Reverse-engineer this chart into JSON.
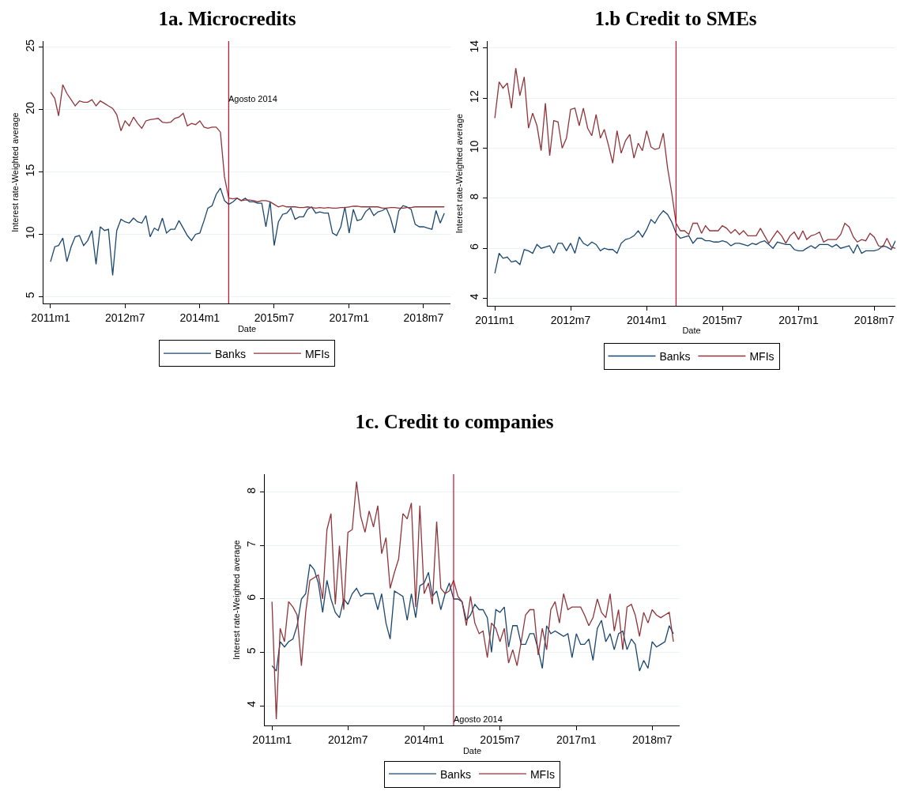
{
  "chart_data": [
    {
      "type": "line",
      "title": "1a. Microcredits",
      "xlabel": "Date",
      "ylabel": "Interest rate-Weighted average",
      "legend": "bottom",
      "grid": "y",
      "marker": "none",
      "line_style": "solid",
      "x": [
        "2011-01",
        "2011-02",
        "2011-03",
        "2011-04",
        "2011-05",
        "2011-06",
        "2011-07",
        "2011-08",
        "2011-09",
        "2011-10",
        "2011-11",
        "2011-12",
        "2012-01",
        "2012-02",
        "2012-03",
        "2012-04",
        "2012-05",
        "2012-06",
        "2012-07",
        "2012-08",
        "2012-09",
        "2012-10",
        "2012-11",
        "2012-12",
        "2013-01",
        "2013-02",
        "2013-03",
        "2013-04",
        "2013-05",
        "2013-06",
        "2013-07",
        "2013-08",
        "2013-09",
        "2013-10",
        "2013-11",
        "2013-12",
        "2014-01",
        "2014-02",
        "2014-03",
        "2014-04",
        "2014-05",
        "2014-06",
        "2014-07",
        "2014-08",
        "2014-09",
        "2014-10",
        "2014-11",
        "2014-12",
        "2015-01",
        "2015-02",
        "2015-03",
        "2015-04",
        "2015-05",
        "2015-06",
        "2015-07",
        "2015-08",
        "2015-09",
        "2015-10",
        "2015-11",
        "2015-12",
        "2016-01",
        "2016-02",
        "2016-03",
        "2016-04",
        "2016-05",
        "2016-06",
        "2016-07",
        "2016-08",
        "2016-09",
        "2016-10",
        "2016-11",
        "2016-12",
        "2017-01",
        "2017-02",
        "2017-03",
        "2017-04",
        "2017-05",
        "2017-06",
        "2017-07",
        "2017-08",
        "2017-09",
        "2017-10",
        "2017-11",
        "2017-12",
        "2018-01",
        "2018-02",
        "2018-03",
        "2018-04",
        "2018-05",
        "2018-06",
        "2018-07",
        "2018-08",
        "2018-09",
        "2018-10",
        "2018-11",
        "2018-12"
      ],
      "xlim": [
        "2010-11-10",
        "2019-01-15"
      ],
      "xticks": [
        {
          "value": "2011-01",
          "label": "2011m1"
        },
        {
          "value": "2012-07",
          "label": "2012m7"
        },
        {
          "value": "2014-01",
          "label": "2014m1"
        },
        {
          "value": "2015-07",
          "label": "2015m7"
        },
        {
          "value": "2017-01",
          "label": "2017m1"
        },
        {
          "value": "2018-07",
          "label": "2018m7"
        }
      ],
      "ylim": [
        4.45,
        25.5
      ],
      "yticks": [
        5,
        10,
        15,
        20,
        25
      ],
      "ref_lines": [
        {
          "axis": "x",
          "value": "2014-08",
          "label": "Agosto 2014",
          "color": "#c8102e"
        }
      ],
      "series": [
        {
          "name": "Banks",
          "color": "#1a476f",
          "values": [
            7.8,
            9.0,
            9.1,
            9.7,
            7.8,
            9.0,
            9.8,
            9.9,
            9.1,
            9.5,
            10.3,
            7.6,
            10.6,
            10.3,
            10.4,
            6.7,
            10.3,
            11.2,
            11.0,
            10.9,
            11.3,
            11.0,
            10.9,
            11.5,
            9.8,
            10.5,
            10.3,
            11.3,
            10.1,
            10.4,
            10.4,
            11.1,
            10.5,
            9.9,
            9.5,
            10.0,
            10.1,
            11.1,
            12.1,
            12.3,
            13.2,
            13.7,
            12.7,
            12.4,
            12.6,
            12.9,
            12.7,
            12.9,
            12.6,
            12.6,
            12.5,
            12.5,
            10.6,
            12.6,
            9.1,
            11.0,
            11.6,
            11.7,
            12.1,
            11.2,
            11.4,
            11.4,
            12.0,
            12.2,
            11.7,
            11.8,
            11.7,
            11.7,
            10.1,
            9.9,
            10.6,
            12.2,
            10.1,
            12.0,
            11.1,
            11.2,
            11.8,
            12.1,
            11.5,
            11.8,
            11.9,
            12.1,
            11.3,
            10.1,
            11.9,
            12.3,
            12.2,
            12.0,
            10.8,
            10.6,
            10.6,
            10.5,
            10.4,
            11.9,
            10.9,
            11.7
          ]
        },
        {
          "name": "MFIs",
          "color": "#90353b",
          "values": [
            21.4,
            20.9,
            19.5,
            22.0,
            21.3,
            20.8,
            20.3,
            20.7,
            20.6,
            20.6,
            20.8,
            20.3,
            20.7,
            20.5,
            20.3,
            20.1,
            19.6,
            18.3,
            19.1,
            18.7,
            19.4,
            18.9,
            18.5,
            19.1,
            19.2,
            19.25,
            19.3,
            19.0,
            18.95,
            19.0,
            19.3,
            19.4,
            19.7,
            18.7,
            18.9,
            18.8,
            19.1,
            18.6,
            18.5,
            18.6,
            18.6,
            18.2,
            14.6,
            12.9,
            12.85,
            12.9,
            12.7,
            12.75,
            12.75,
            12.7,
            12.6,
            12.7,
            12.7,
            12.6,
            12.4,
            12.2,
            12.3,
            12.2,
            12.2,
            12.2,
            12.15,
            12.15,
            12.2,
            12.15,
            12.1,
            12.15,
            12.1,
            12.15,
            12.1,
            12.1,
            12.15,
            12.15,
            12.2,
            12.25,
            12.25,
            12.2,
            12.2,
            12.2,
            12.2,
            12.2,
            12.1,
            12.1,
            12.15,
            12.15,
            12.1,
            12.1,
            12.15,
            12.15,
            12.2,
            12.2,
            12.2,
            12.2,
            12.2,
            12.2,
            12.2,
            12.2
          ]
        }
      ]
    },
    {
      "type": "line",
      "title": "1.b Credit to SMEs",
      "xlabel": "Date",
      "ylabel": "Interest rate-Weighted average",
      "legend": "bottom",
      "grid": "y",
      "marker": "none",
      "line_style": "solid",
      "x": [
        "2011-01",
        "2011-02",
        "2011-03",
        "2011-04",
        "2011-05",
        "2011-06",
        "2011-07",
        "2011-08",
        "2011-09",
        "2011-10",
        "2011-11",
        "2011-12",
        "2012-01",
        "2012-02",
        "2012-03",
        "2012-04",
        "2012-05",
        "2012-06",
        "2012-07",
        "2012-08",
        "2012-09",
        "2012-10",
        "2012-11",
        "2012-12",
        "2013-01",
        "2013-02",
        "2013-03",
        "2013-04",
        "2013-05",
        "2013-06",
        "2013-07",
        "2013-08",
        "2013-09",
        "2013-10",
        "2013-11",
        "2013-12",
        "2014-01",
        "2014-02",
        "2014-03",
        "2014-04",
        "2014-05",
        "2014-06",
        "2014-07",
        "2014-08",
        "2014-09",
        "2014-10",
        "2014-11",
        "2014-12",
        "2015-01",
        "2015-02",
        "2015-03",
        "2015-04",
        "2015-05",
        "2015-06",
        "2015-07",
        "2015-08",
        "2015-09",
        "2015-10",
        "2015-11",
        "2015-12",
        "2016-01",
        "2016-02",
        "2016-03",
        "2016-04",
        "2016-05",
        "2016-06",
        "2016-07",
        "2016-08",
        "2016-09",
        "2016-10",
        "2016-11",
        "2016-12",
        "2017-01",
        "2017-02",
        "2017-03",
        "2017-04",
        "2017-05",
        "2017-06",
        "2017-07",
        "2017-08",
        "2017-09",
        "2017-10",
        "2017-11",
        "2017-12",
        "2018-01",
        "2018-02",
        "2018-03",
        "2018-04",
        "2018-05",
        "2018-06",
        "2018-07",
        "2018-08",
        "2018-09",
        "2018-10",
        "2018-11",
        "2018-12"
      ],
      "xlim": [
        "2010-11-10",
        "2018-12-01"
      ],
      "xticks": [
        {
          "value": "2011-01",
          "label": "2011m1"
        },
        {
          "value": "2012-07",
          "label": "2012m7"
        },
        {
          "value": "2014-01",
          "label": "2014m1"
        },
        {
          "value": "2015-07",
          "label": "2015m7"
        },
        {
          "value": "2017-01",
          "label": "2017m1"
        },
        {
          "value": "2018-07",
          "label": "2018m7"
        }
      ],
      "ylim": [
        3.7,
        14.28
      ],
      "yticks": [
        4,
        6,
        8,
        10,
        12,
        14
      ],
      "ref_lines": [
        {
          "axis": "x",
          "value": "2014-08",
          "color": "#c8102e"
        }
      ],
      "series": [
        {
          "name": "Banks",
          "color": "#1a476f",
          "values": [
            5.0,
            5.8,
            5.6,
            5.65,
            5.45,
            5.5,
            5.35,
            5.95,
            5.9,
            5.8,
            6.15,
            6.0,
            6.05,
            6.1,
            5.8,
            6.2,
            6.2,
            5.9,
            6.2,
            5.8,
            6.45,
            6.2,
            6.1,
            6.25,
            6.15,
            5.9,
            6.0,
            5.95,
            5.95,
            5.8,
            6.2,
            6.35,
            6.4,
            6.5,
            6.7,
            6.45,
            6.75,
            7.15,
            7.0,
            7.3,
            7.5,
            7.35,
            7.05,
            6.6,
            6.4,
            6.45,
            6.5,
            6.2,
            6.4,
            6.4,
            6.3,
            6.3,
            6.25,
            6.25,
            6.3,
            6.25,
            6.1,
            6.2,
            6.2,
            6.15,
            6.1,
            6.2,
            6.15,
            6.25,
            6.3,
            6.15,
            6.0,
            6.25,
            6.2,
            6.15,
            6.15,
            5.95,
            5.9,
            5.9,
            6.0,
            6.1,
            6.0,
            6.15,
            6.15,
            6.15,
            6.05,
            6.15,
            6.0,
            6.05,
            6.1,
            5.8,
            6.15,
            5.8,
            5.9,
            5.9,
            5.9,
            5.95,
            6.1,
            6.05,
            5.95,
            6.3
          ]
        },
        {
          "name": "MFIs",
          "color": "#90353b",
          "values": [
            11.2,
            12.65,
            12.4,
            12.6,
            11.6,
            13.2,
            12.1,
            12.85,
            10.8,
            11.4,
            10.9,
            9.9,
            11.8,
            9.7,
            11.1,
            11.05,
            10.0,
            10.4,
            11.55,
            11.6,
            10.9,
            11.6,
            10.8,
            10.5,
            11.35,
            10.4,
            10.75,
            10.1,
            9.4,
            10.7,
            9.8,
            10.3,
            10.55,
            9.6,
            10.2,
            9.9,
            10.7,
            10.05,
            9.95,
            10.0,
            10.6,
            9.2,
            8.2,
            7.0,
            6.7,
            6.7,
            6.55,
            7.0,
            7.0,
            6.6,
            6.9,
            6.7,
            6.7,
            6.7,
            6.9,
            6.8,
            6.6,
            6.75,
            6.55,
            6.7,
            6.5,
            6.5,
            6.5,
            6.8,
            6.5,
            6.2,
            6.45,
            6.7,
            6.5,
            6.2,
            6.5,
            6.65,
            6.35,
            6.7,
            6.35,
            6.5,
            6.55,
            6.65,
            6.25,
            6.35,
            6.35,
            6.35,
            6.55,
            7.0,
            6.85,
            6.45,
            6.25,
            6.35,
            6.3,
            6.6,
            6.45,
            6.1,
            6.05,
            6.4,
            6.05,
            6.0
          ]
        }
      ]
    },
    {
      "type": "line",
      "title": "1c. Credit to companies",
      "xlabel": "Date",
      "ylabel": "Interest rate-Weighted average",
      "legend": "bottom",
      "grid": "y",
      "marker": "none",
      "line_style": "solid",
      "x": [
        "2011-01",
        "2011-02",
        "2011-03",
        "2011-04",
        "2011-05",
        "2011-06",
        "2011-07",
        "2011-08",
        "2011-09",
        "2011-10",
        "2011-11",
        "2011-12",
        "2012-01",
        "2012-02",
        "2012-03",
        "2012-04",
        "2012-05",
        "2012-06",
        "2012-07",
        "2012-08",
        "2012-09",
        "2012-10",
        "2012-11",
        "2012-12",
        "2013-01",
        "2013-02",
        "2013-03",
        "2013-04",
        "2013-05",
        "2013-06",
        "2013-07",
        "2013-08",
        "2013-09",
        "2013-10",
        "2013-11",
        "2013-12",
        "2014-01",
        "2014-02",
        "2014-03",
        "2014-04",
        "2014-05",
        "2014-06",
        "2014-07",
        "2014-08",
        "2014-09",
        "2014-10",
        "2014-11",
        "2014-12",
        "2015-01",
        "2015-02",
        "2015-03",
        "2015-04",
        "2015-05",
        "2015-06",
        "2015-07",
        "2015-08",
        "2015-09",
        "2015-10",
        "2015-11",
        "2015-12",
        "2016-01",
        "2016-02",
        "2016-03",
        "2016-04",
        "2016-05",
        "2016-06",
        "2016-07",
        "2016-08",
        "2016-09",
        "2016-10",
        "2016-11",
        "2016-12",
        "2017-01",
        "2017-02",
        "2017-03",
        "2017-04",
        "2017-05",
        "2017-06",
        "2017-07",
        "2017-08",
        "2017-09",
        "2017-10",
        "2017-11",
        "2017-12",
        "2018-01",
        "2018-02",
        "2018-03",
        "2018-04",
        "2018-05",
        "2018-06",
        "2018-07",
        "2018-08",
        "2018-09",
        "2018-10",
        "2018-11",
        "2018-12"
      ],
      "xlim": [
        "2010-11-10",
        "2019-01-15"
      ],
      "xticks": [
        {
          "value": "2011-01",
          "label": "2011m1"
        },
        {
          "value": "2012-07",
          "label": "2012m7"
        },
        {
          "value": "2014-01",
          "label": "2014m1"
        },
        {
          "value": "2015-07",
          "label": "2015m7"
        },
        {
          "value": "2017-01",
          "label": "2017m1"
        },
        {
          "value": "2018-07",
          "label": "2018m7"
        }
      ],
      "ylim": [
        3.63,
        8.34
      ],
      "yticks": [
        4,
        5,
        6,
        7,
        8
      ],
      "ref_lines": [
        {
          "axis": "x",
          "value": "2014-08",
          "label": "Agosto 2014",
          "color": "#c8102e"
        }
      ],
      "series": [
        {
          "name": "Banks",
          "color": "#1a476f",
          "values": [
            4.75,
            4.65,
            5.2,
            5.1,
            5.2,
            5.25,
            5.5,
            6.0,
            6.1,
            6.65,
            6.55,
            6.3,
            5.75,
            6.35,
            6.0,
            5.75,
            5.65,
            6.0,
            5.9,
            6.1,
            6.2,
            6.05,
            6.1,
            6.1,
            6.1,
            5.8,
            6.1,
            5.55,
            5.25,
            6.15,
            6.1,
            6.05,
            5.6,
            6.1,
            5.65,
            6.25,
            6.3,
            6.5,
            6.05,
            6.15,
            5.8,
            6.1,
            6.3,
            6.0,
            6.0,
            5.95,
            5.6,
            5.7,
            5.9,
            5.8,
            5.8,
            5.65,
            5.0,
            5.8,
            5.75,
            5.85,
            5.1,
            5.5,
            5.5,
            5.15,
            5.15,
            5.35,
            5.35,
            5.05,
            4.7,
            5.5,
            5.35,
            5.4,
            5.35,
            5.3,
            5.35,
            4.9,
            5.35,
            5.15,
            5.15,
            5.25,
            4.85,
            5.45,
            5.6,
            5.2,
            5.35,
            5.05,
            5.35,
            5.4,
            5.05,
            5.25,
            5.15,
            4.65,
            4.85,
            4.7,
            5.2,
            5.1,
            5.15,
            5.2,
            5.5,
            5.35
          ]
        },
        {
          "name": "MFIs",
          "color": "#90353b",
          "values": [
            5.95,
            3.75,
            5.45,
            5.2,
            5.95,
            5.85,
            5.7,
            4.75,
            5.75,
            6.35,
            6.4,
            6.45,
            6.0,
            7.3,
            7.6,
            5.9,
            7.0,
            5.8,
            7.25,
            7.3,
            8.2,
            7.55,
            7.25,
            7.65,
            7.35,
            7.75,
            6.85,
            7.15,
            6.2,
            6.5,
            6.75,
            7.6,
            7.5,
            7.8,
            5.85,
            7.75,
            6.1,
            6.3,
            5.9,
            7.45,
            6.2,
            6.1,
            6.15,
            6.35,
            6.05,
            5.95,
            5.5,
            6.05,
            5.55,
            5.35,
            5.4,
            4.9,
            5.55,
            5.45,
            5.2,
            5.45,
            4.8,
            5.05,
            4.75,
            5.2,
            5.7,
            5.8,
            5.8,
            4.95,
            5.45,
            5.05,
            5.8,
            5.95,
            5.55,
            6.1,
            5.8,
            5.85,
            5.85,
            5.85,
            5.7,
            5.5,
            5.65,
            6.0,
            5.75,
            5.65,
            6.1,
            5.4,
            5.8,
            5.05,
            5.85,
            5.9,
            5.7,
            5.3,
            5.75,
            5.55,
            5.8,
            5.7,
            5.65,
            5.7,
            5.75,
            5.2
          ]
        }
      ]
    }
  ]
}
